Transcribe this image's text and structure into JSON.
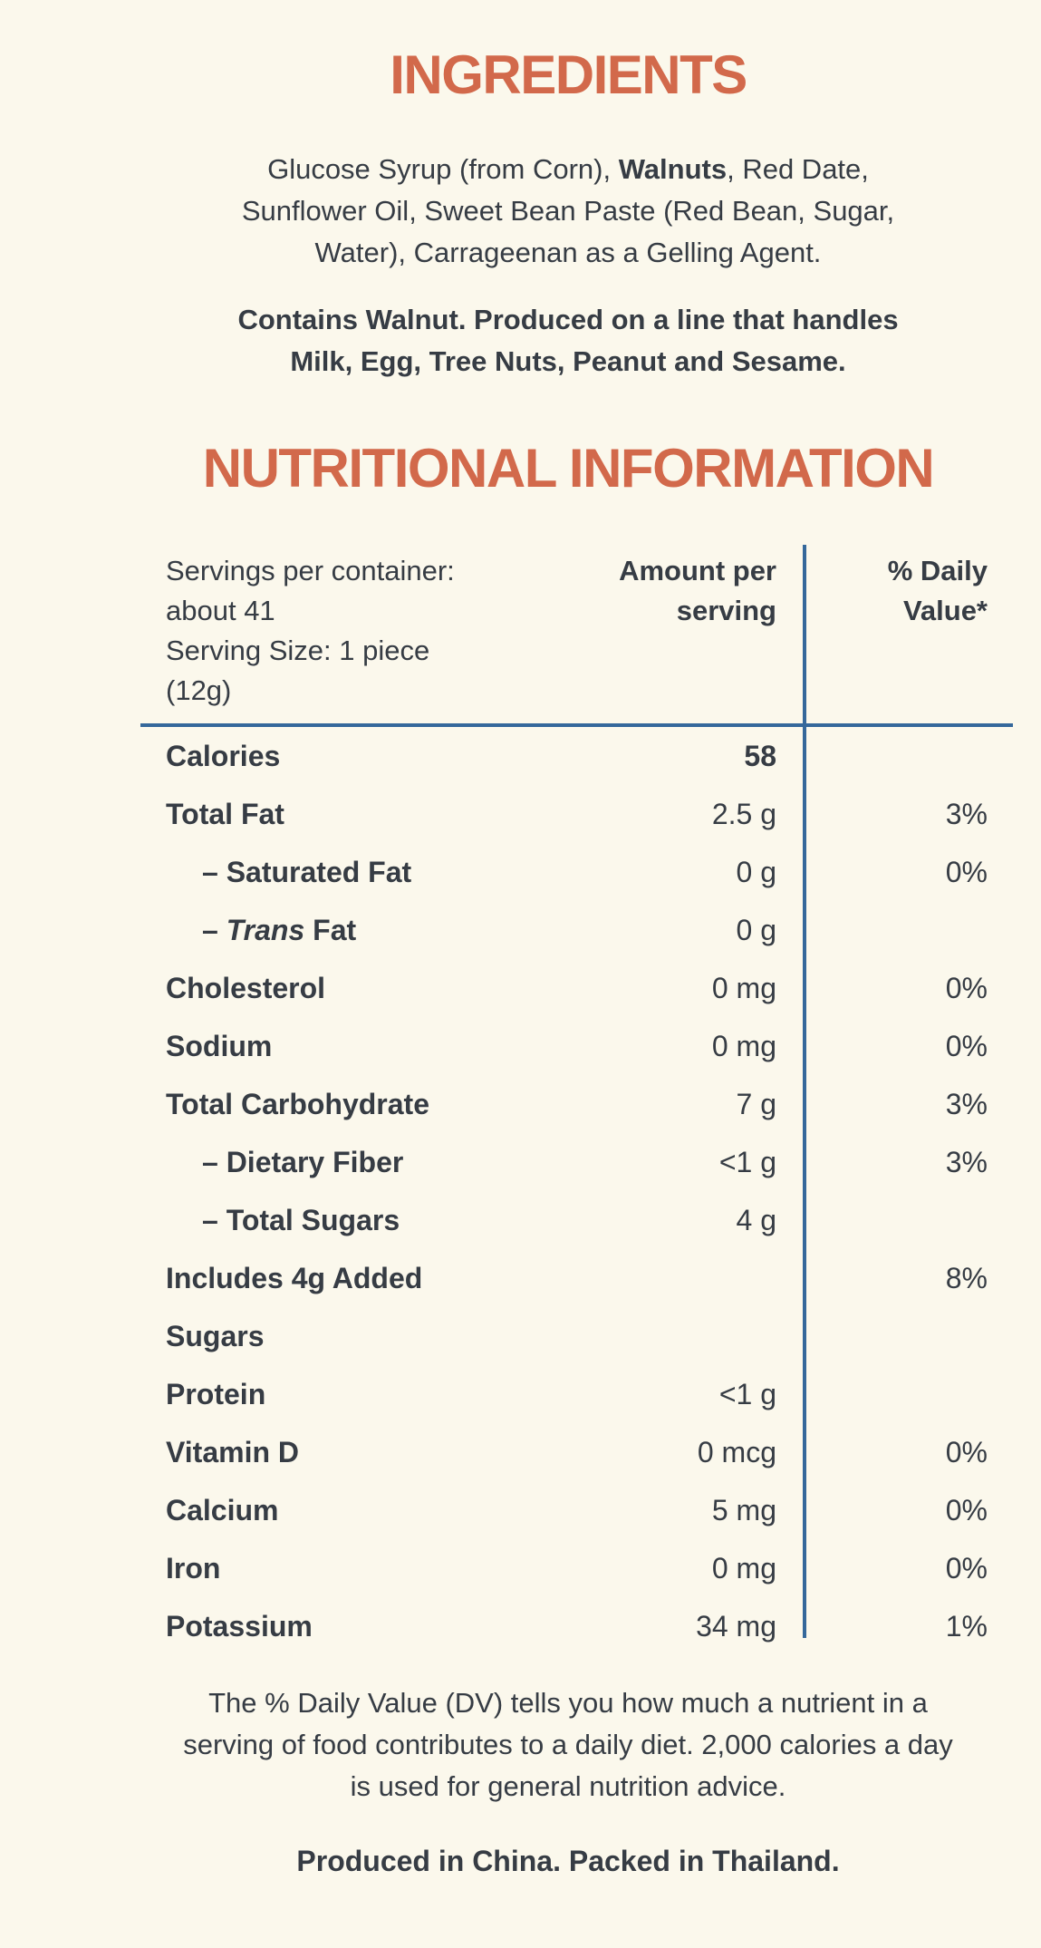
{
  "page": {
    "background_color": "#FBF8EC",
    "accent_color": "#D2694B",
    "text_color": "#363C44",
    "rule_color": "#35689B"
  },
  "ingredients": {
    "title": "INGREDIENTS",
    "line1_before": "Glucose Syrup (from Corn), ",
    "line1_bold": "Walnuts",
    "line1_after": ", Red Date,",
    "line2": "Sunflower Oil, Sweet Bean Paste (Red Bean, Sugar,",
    "line3": "Water), Carrageenan as a Gelling Agent.",
    "allergen_line1": "Contains Walnut. Produced on a line that handles",
    "allergen_line2": "Milk, Egg, Tree Nuts, Peanut and Sesame."
  },
  "nutrition": {
    "title": "NUTRITIONAL INFORMATION",
    "header": {
      "left_lines": [
        "Servings per container:",
        "about 41",
        "Serving Size: 1 piece",
        "(12g)"
      ],
      "amount_col": "Amount per serving",
      "dv_col": "% Daily Value*"
    },
    "rows": [
      {
        "label": "Calories",
        "amount": "58",
        "dv": "",
        "amount_bold": true
      },
      {
        "label": "Total Fat",
        "amount": "2.5 g",
        "dv": "3%"
      },
      {
        "label": "– Saturated Fat",
        "amount": "0 g",
        "dv": "0%",
        "indent": true
      },
      {
        "label_parts": {
          "pre": "– ",
          "italic": "Trans",
          "post": " Fat"
        },
        "amount": "0 g",
        "dv": "",
        "indent": true
      },
      {
        "label": "Cholesterol",
        "amount": "0 mg",
        "dv": "0%"
      },
      {
        "label": "Sodium",
        "amount": "0 mg",
        "dv": "0%"
      },
      {
        "label": "Total Carbohydrate",
        "amount": "7 g",
        "dv": "3%"
      },
      {
        "label": "– Dietary Fiber",
        "amount": "<1 g",
        "dv": "3%",
        "indent": true
      },
      {
        "label": "– Total Sugars",
        "amount": "4 g",
        "dv": "",
        "indent": true
      },
      {
        "label": "Includes 4g Added Sugars",
        "amount": "",
        "dv": "8%"
      },
      {
        "label": "Protein",
        "amount": "<1 g",
        "dv": ""
      },
      {
        "label": "Vitamin D",
        "amount": "0 mcg",
        "dv": "0%"
      },
      {
        "label": "Calcium",
        "amount": "5 mg",
        "dv": "0%"
      },
      {
        "label": "Iron",
        "amount": "0 mg",
        "dv": "0%"
      },
      {
        "label": "Potassium",
        "amount": "34 mg",
        "dv": "1%"
      }
    ]
  },
  "footer": {
    "dv_note_lines": [
      "The % Daily Value (DV) tells you how much a nutrient in a",
      "serving of food contributes to a daily diet. 2,000 calories a day",
      "is used for general nutrition advice."
    ],
    "origin": "Produced in China. Packed in Thailand."
  }
}
